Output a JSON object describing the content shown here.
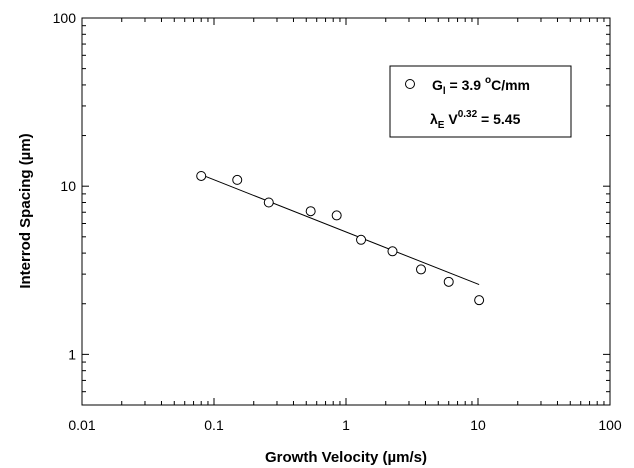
{
  "chart_data": {
    "type": "scatter",
    "x_scale": "log",
    "y_scale": "log",
    "xlim": [
      0.01,
      100
    ],
    "ylim": [
      0.5,
      100
    ],
    "xlabel": "Growth  Velocity (µm/s)",
    "ylabel": "Interrod  Spacing (µm)",
    "x_tick_labels": [
      "0.01",
      "0.1",
      "1",
      "10",
      "100"
    ],
    "y_tick_labels": [
      "1",
      "10",
      "100"
    ],
    "x_ticks": [
      0.01,
      0.1,
      1,
      10,
      100
    ],
    "y_ticks": [
      1,
      10,
      100
    ],
    "grid": false,
    "legend_position": "top-right",
    "series": [
      {
        "marker": "open-circle",
        "x": [
          0.08,
          0.15,
          0.26,
          0.54,
          0.85,
          1.3,
          2.25,
          3.7,
          6.0,
          10.2
        ],
        "y": [
          11.5,
          10.9,
          8.0,
          7.1,
          6.7,
          4.8,
          4.1,
          3.2,
          2.7,
          2.1
        ]
      }
    ],
    "fit_line": {
      "x": [
        0.08,
        10.2
      ],
      "y": [
        11.7,
        2.6
      ]
    },
    "legend": {
      "g_main": "G",
      "g_sub": "l",
      "g_value": " = 3.9 ",
      "g_unit_sup": "o",
      "g_unit": "C/mm",
      "eq_lambda": "λ",
      "eq_sub": "E",
      "eq_v": " V",
      "eq_sup": "0.32",
      "eq_value": " = 5.45"
    }
  }
}
